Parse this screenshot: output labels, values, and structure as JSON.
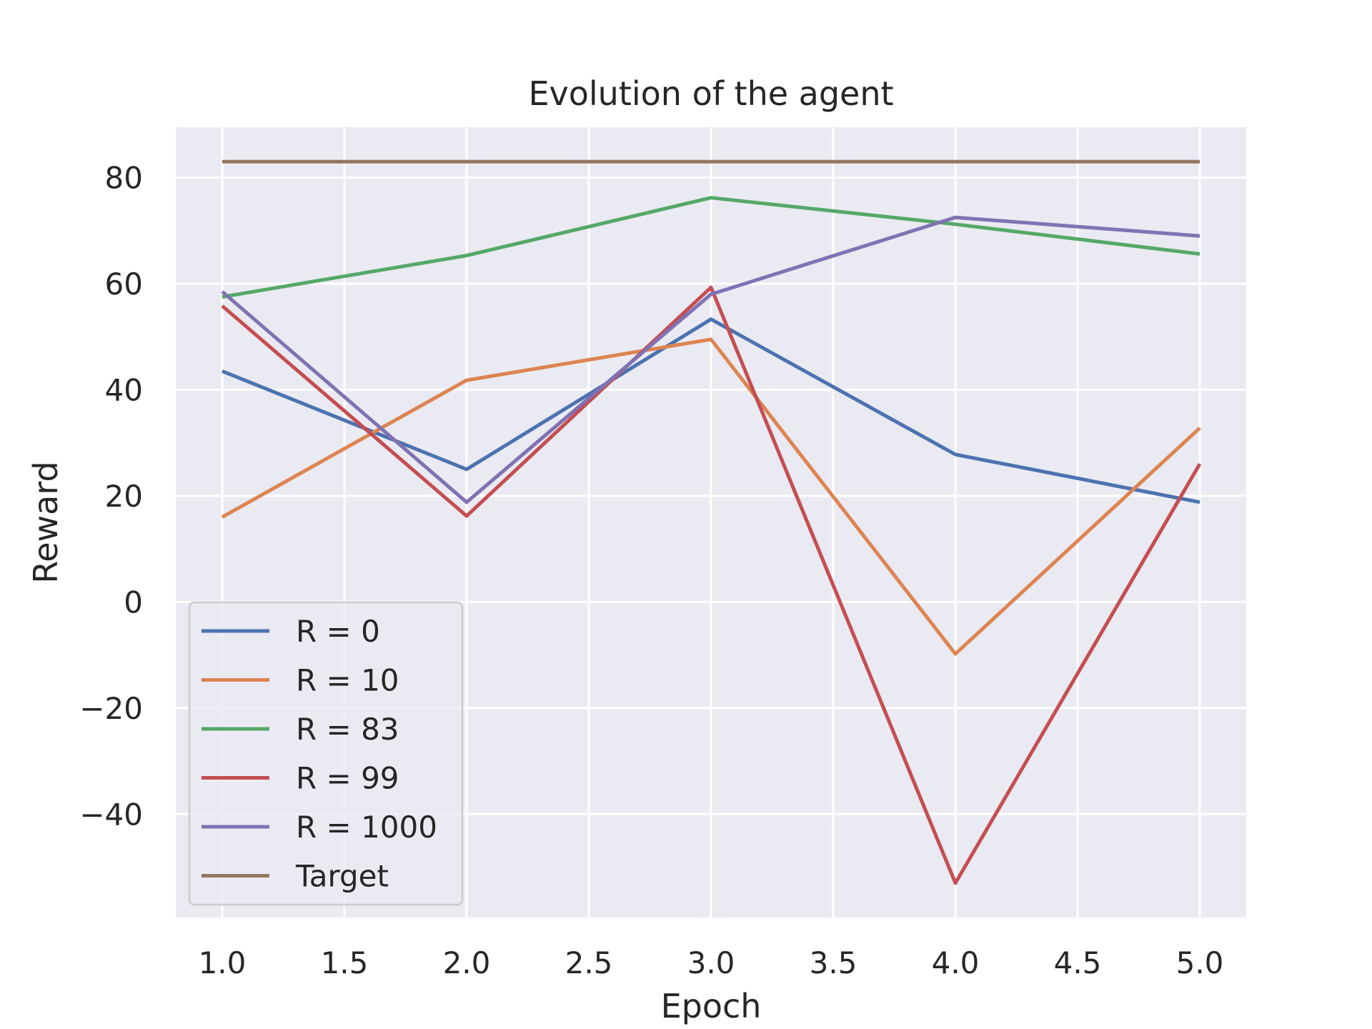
{
  "chart_data": {
    "type": "line",
    "title": "Evolution of the agent",
    "xlabel": "Epoch",
    "ylabel": "Reward",
    "x": [
      1.0,
      2.0,
      3.0,
      4.0,
      5.0
    ],
    "xlim": [
      0.81,
      5.19
    ],
    "ylim": [
      -59.5,
      89.5
    ],
    "xticks": [
      1.0,
      1.5,
      2.0,
      2.5,
      3.0,
      3.5,
      4.0,
      4.5,
      5.0
    ],
    "xtick_labels": [
      "1.0",
      "1.5",
      "2.0",
      "2.5",
      "3.0",
      "3.5",
      "4.0",
      "4.5",
      "5.0"
    ],
    "yticks": [
      -40,
      -20,
      0,
      20,
      40,
      60,
      80
    ],
    "ytick_labels": [
      "−40",
      "−20",
      "0",
      "20",
      "40",
      "60",
      "80"
    ],
    "grid": true,
    "legend_position": "lower-left",
    "background_color": "#eaeaf2",
    "series": [
      {
        "name": "R = 0",
        "color": "#4c72b0",
        "values": [
          43.5,
          25.0,
          53.3,
          27.8,
          18.8
        ]
      },
      {
        "name": "R = 10",
        "color": "#dd8452",
        "values": [
          16.0,
          41.8,
          49.5,
          -9.8,
          32.8
        ]
      },
      {
        "name": "R = 83",
        "color": "#55a868",
        "values": [
          57.5,
          65.3,
          76.2,
          71.2,
          65.6
        ]
      },
      {
        "name": "R = 99",
        "color": "#c44e52",
        "values": [
          55.8,
          16.2,
          59.3,
          -53.0,
          26.0
        ]
      },
      {
        "name": "R = 1000",
        "color": "#8172b3",
        "values": [
          58.5,
          18.8,
          58.0,
          72.5,
          69.0
        ]
      },
      {
        "name": "Target",
        "color": "#937860",
        "values": [
          83.0,
          83.0,
          83.0,
          83.0,
          83.0
        ]
      }
    ]
  }
}
